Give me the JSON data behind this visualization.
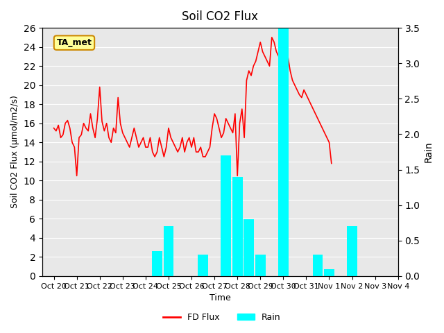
{
  "title": "Soil CO2 Flux",
  "xlabel": "Time",
  "ylabel_left": "Soil CO2 Flux (μmol/m2/s)",
  "ylabel_right": "Rain",
  "flux_color": "#FF0000",
  "rain_color": "#00FFFF",
  "annotation_text": "TA_met",
  "annotation_bg": "#FFFF99",
  "annotation_border": "#CC8800",
  "ylim_left": [
    0,
    26
  ],
  "ylim_right": [
    0,
    3.5
  ],
  "yticks_left": [
    0,
    2,
    4,
    6,
    8,
    10,
    12,
    14,
    16,
    18,
    20,
    22,
    24,
    26
  ],
  "yticks_right": [
    0.0,
    0.5,
    1.0,
    1.5,
    2.0,
    2.5,
    3.0,
    3.5
  ],
  "legend_labels": [
    "FD Flux",
    "Rain"
  ],
  "flux_data": {
    "x": [
      0,
      0.1,
      0.2,
      0.3,
      0.4,
      0.5,
      0.6,
      0.7,
      0.8,
      0.9,
      1.0,
      1.1,
      1.2,
      1.3,
      1.4,
      1.5,
      1.6,
      1.7,
      1.8,
      1.9,
      2.0,
      2.1,
      2.2,
      2.3,
      2.4,
      2.5,
      2.6,
      2.7,
      2.8,
      2.9,
      3.0,
      3.1,
      3.2,
      3.3,
      3.4,
      3.5,
      3.6,
      3.7,
      3.8,
      3.9,
      4.0,
      4.1,
      4.2,
      4.3,
      4.4,
      4.5,
      4.6,
      4.7,
      4.8,
      4.9,
      5.0,
      5.1,
      5.2,
      5.3,
      5.4,
      5.5,
      5.6,
      5.7,
      5.8,
      5.9,
      6.0,
      6.1,
      6.2,
      6.3,
      6.4,
      6.5,
      6.6,
      6.7,
      6.8,
      6.9,
      7.0,
      7.1,
      7.2,
      7.3,
      7.4,
      7.5,
      7.6,
      7.7,
      7.8,
      7.9,
      8.0,
      8.1,
      8.2,
      8.3,
      8.4,
      8.5,
      8.6,
      8.7,
      8.8,
      8.9,
      9.0,
      9.1,
      9.2,
      9.3,
      9.4,
      9.5,
      9.6,
      9.7,
      9.8,
      9.9,
      10.0,
      10.1,
      10.2,
      10.3,
      10.4,
      10.5,
      10.6,
      10.7,
      10.8,
      10.9,
      11.0,
      11.1,
      11.2,
      11.3,
      11.4,
      11.5,
      11.6,
      11.7,
      11.8,
      11.9,
      12.0,
      12.1,
      12.2,
      12.3,
      12.4,
      12.5,
      12.6,
      12.7,
      12.8,
      12.9,
      13.0,
      13.1,
      13.2,
      13.3,
      13.4,
      13.5,
      13.6,
      13.7,
      13.8,
      13.9,
      14.0
    ],
    "y": [
      15.5,
      15.2,
      15.8,
      14.5,
      14.8,
      16.0,
      16.3,
      15.5,
      14.0,
      13.5,
      10.5,
      14.5,
      14.8,
      16.0,
      15.5,
      15.2,
      17.0,
      15.5,
      14.5,
      16.5,
      19.8,
      16.2,
      15.2,
      16.0,
      14.5,
      14.0,
      15.5,
      15.0,
      18.7,
      16.0,
      15.0,
      14.5,
      14.0,
      13.5,
      14.5,
      15.5,
      14.5,
      13.5,
      14.0,
      14.5,
      13.5,
      13.5,
      14.5,
      13.0,
      12.5,
      13.0,
      14.5,
      13.5,
      12.5,
      13.5,
      15.5,
      14.5,
      14.0,
      13.5,
      13.0,
      13.5,
      14.5,
      13.0,
      14.0,
      14.5,
      13.5,
      14.5,
      13.0,
      13.0,
      13.5,
      12.5,
      12.5,
      13.0,
      13.5,
      15.5,
      17.0,
      16.5,
      15.5,
      14.5,
      15.0,
      16.5,
      16.0,
      15.5,
      15.0,
      17.0,
      10.5,
      16.0,
      17.5,
      14.5,
      20.5,
      21.5,
      21.0,
      22.0,
      22.5,
      23.5,
      24.5,
      23.5,
      23.0,
      22.5,
      22.0,
      25.0,
      24.5,
      23.5,
      23.0,
      22.0,
      21.5,
      22.0,
      23.0,
      21.5,
      20.5,
      20.0,
      19.5,
      19.0,
      18.7,
      19.5,
      19.0,
      18.5,
      18.0,
      17.5,
      17.0,
      16.5,
      16.0,
      15.5,
      15.0,
      14.5,
      14.0,
      11.8,
      null,
      null,
      null,
      null,
      null,
      null,
      null,
      null,
      null,
      null,
      null,
      null,
      null,
      null,
      null,
      null,
      null,
      null,
      null
    ]
  },
  "rain_data": {
    "x": [
      0.0,
      0.5,
      1.0,
      1.5,
      2.0,
      2.5,
      3.0,
      3.5,
      4.0,
      4.5,
      5.0,
      5.5,
      6.0,
      6.5,
      7.0,
      7.5,
      8.0,
      8.5,
      9.0,
      9.5,
      10.0,
      10.5,
      11.0,
      11.5,
      12.0,
      12.5,
      13.0,
      13.5,
      14.0
    ],
    "y": [
      0.0,
      0.0,
      0.0,
      0.0,
      0.0,
      0.0,
      0.0,
      0.0,
      0.0,
      0.35,
      0.7,
      0.0,
      0.0,
      0.3,
      0.0,
      1.7,
      1.4,
      0.8,
      0.3,
      0.0,
      3.5,
      0.0,
      0.0,
      0.3,
      0.1,
      0.0,
      0.7,
      0.0,
      0.0
    ]
  },
  "xticklabels": [
    "Oct 20",
    "Oct 21",
    "Oct 22",
    "Oct 23",
    "Oct 24",
    "Oct 25",
    "Oct 26",
    "Oct 27",
    "Oct 28",
    "Oct 29",
    "Oct 30",
    "Oct 31",
    "Nov 1",
    "Nov 2",
    "Nov 3",
    "Nov 4"
  ],
  "xtick_positions": [
    0,
    1,
    2,
    3,
    4,
    5,
    6,
    7,
    8,
    9,
    10,
    11,
    12,
    13,
    14,
    15
  ],
  "bg_color": "#E8E8E8",
  "fig_bg": "#FFFFFF"
}
